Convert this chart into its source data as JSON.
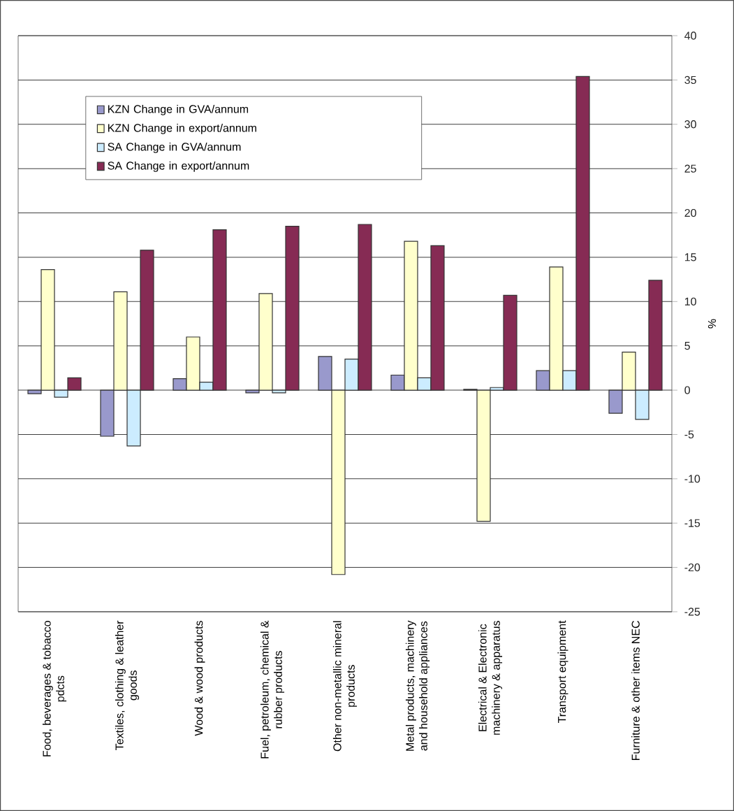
{
  "chart_data": {
    "type": "bar",
    "ylabel": "%",
    "categories": [
      "Food, beverages & tobacco pdcts",
      "Textiles, clothing & leather goods",
      "Wood & wood products",
      "Fuel, petroleum, chemical & rubber products",
      "Other non-metallic mineral products",
      "Metal products, machinery and household appliances",
      "Electrical & Electronic machinery & apparatus",
      "Transport equipment",
      "Furniture & other items NEC"
    ],
    "series": [
      {
        "name": "KZN Change in GVA/annum",
        "color": "#9999cc",
        "values": [
          -0.4,
          -5.2,
          1.3,
          -0.3,
          3.8,
          1.7,
          0.1,
          2.2,
          -2.6
        ]
      },
      {
        "name": "KZN Change in export/annum",
        "color": "#ffffcc",
        "values": [
          13.6,
          11.1,
          6.0,
          10.9,
          -20.8,
          16.8,
          -14.8,
          13.9,
          4.3
        ]
      },
      {
        "name": "SA Change in GVA/annum",
        "color": "#ccecff",
        "values": [
          -0.8,
          -6.3,
          0.9,
          -0.3,
          3.5,
          1.4,
          0.3,
          2.2,
          -3.3
        ]
      },
      {
        "name": "SA Change in export/annum",
        "color": "#862b54",
        "values": [
          1.4,
          15.8,
          18.1,
          18.5,
          18.7,
          16.3,
          10.7,
          35.4,
          12.4
        ]
      }
    ],
    "ylim": [
      -25,
      40
    ],
    "yticks": [
      -25,
      -20,
      -15,
      -10,
      -5,
      0,
      5,
      10,
      15,
      20,
      25,
      30,
      35,
      40
    ],
    "grid": "y",
    "legend": "top left"
  }
}
